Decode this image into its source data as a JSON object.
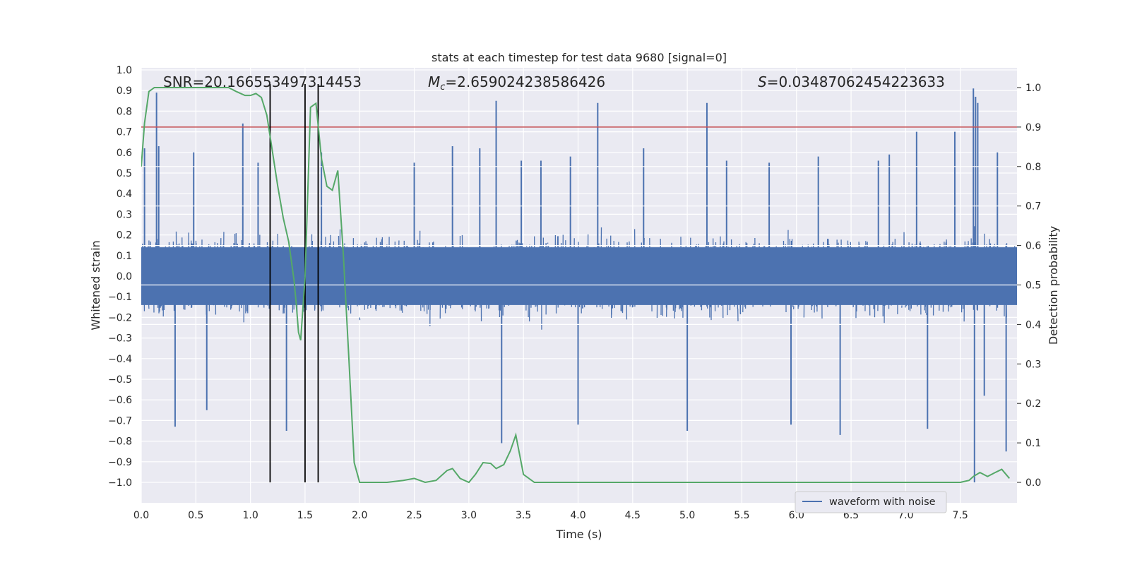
{
  "chart_data": {
    "type": "line",
    "title": "stats at each timestep for test data 9680 [signal=0]",
    "xlabel": "Time (s)",
    "ylabel": "Whitened strain",
    "y2label": "Detection probability",
    "xlim": [
      0,
      8
    ],
    "ylim": [
      -1.05,
      1.02
    ],
    "y2lim": [
      -0.05,
      1.05
    ],
    "xticks": [
      "0.0",
      "0.5",
      "1.0",
      "1.5",
      "2.0",
      "2.5",
      "3.0",
      "3.5",
      "4.0",
      "4.5",
      "5.0",
      "5.5",
      "6.0",
      "6.5",
      "7.0",
      "7.5"
    ],
    "yticks": [
      "1.0",
      "0.9",
      "0.8",
      "0.7",
      "0.6",
      "0.5",
      "0.4",
      "0.3",
      "0.2",
      "0.1",
      "0.0",
      "−0.1",
      "−0.2",
      "−0.3",
      "−0.4",
      "−0.5",
      "−0.6",
      "−0.7",
      "−0.8",
      "−0.9",
      "−1.0"
    ],
    "y2ticks": [
      "1.0",
      "0.9",
      "0.8",
      "0.7",
      "0.6",
      "0.5",
      "0.4",
      "0.3",
      "0.2",
      "0.1",
      "0.0"
    ],
    "annotations": {
      "snr": "SNR=20.166553497314453",
      "mc": "=2.659024238586426",
      "mc_symbol": "M",
      "mc_sub": "c",
      "s": "=0.03487062454223633",
      "s_symbol": "S"
    },
    "legend": {
      "label": "waveform with noise",
      "position": "lower-right"
    },
    "threshold": {
      "y2": 0.9,
      "color": "#c44e52"
    },
    "vertical_lines_x": [
      1.18,
      1.5,
      1.62
    ],
    "series": [
      {
        "name": "waveform with noise",
        "color": "#4c72b0",
        "axis": "left",
        "envelope": "noise band mostly within ±0.35, spikes to about ±0.9",
        "spikes": [
          [
            0.03,
            0.62
          ],
          [
            0.14,
            0.89
          ],
          [
            0.16,
            0.63
          ],
          [
            0.31,
            -0.73
          ],
          [
            0.48,
            0.6
          ],
          [
            0.6,
            -0.65
          ],
          [
            0.93,
            0.74
          ],
          [
            1.07,
            0.55
          ],
          [
            1.33,
            -0.75
          ],
          [
            1.65,
            0.6
          ],
          [
            2.5,
            0.55
          ],
          [
            2.85,
            0.63
          ],
          [
            3.1,
            0.62
          ],
          [
            3.25,
            0.85
          ],
          [
            3.3,
            -0.81
          ],
          [
            3.48,
            0.56
          ],
          [
            3.66,
            0.56
          ],
          [
            3.93,
            0.58
          ],
          [
            4.0,
            -0.72
          ],
          [
            4.18,
            0.84
          ],
          [
            4.6,
            0.62
          ],
          [
            5.0,
            -0.75
          ],
          [
            5.18,
            0.84
          ],
          [
            5.36,
            0.56
          ],
          [
            5.75,
            0.55
          ],
          [
            5.95,
            -0.72
          ],
          [
            6.2,
            0.58
          ],
          [
            6.4,
            -0.77
          ],
          [
            6.75,
            0.56
          ],
          [
            6.85,
            0.59
          ],
          [
            7.1,
            0.7
          ],
          [
            7.2,
            -0.74
          ],
          [
            7.45,
            0.7
          ],
          [
            7.62,
            0.91
          ],
          [
            7.64,
            0.87
          ],
          [
            7.66,
            0.84
          ],
          [
            7.63,
            -1.0
          ],
          [
            7.92,
            -0.85
          ],
          [
            7.84,
            0.6
          ],
          [
            7.72,
            -0.58
          ]
        ]
      },
      {
        "name": "",
        "color": "#55a868",
        "axis": "right",
        "x": [
          0.0,
          0.03,
          0.07,
          0.12,
          0.2,
          0.3,
          0.5,
          0.7,
          0.8,
          0.87,
          0.95,
          1.0,
          1.05,
          1.1,
          1.15,
          1.2,
          1.25,
          1.3,
          1.35,
          1.4,
          1.42,
          1.44,
          1.46,
          1.5,
          1.55,
          1.6,
          1.65,
          1.7,
          1.75,
          1.8,
          1.85,
          1.9,
          1.95,
          2.0,
          2.1,
          2.25,
          2.4,
          2.5,
          2.6,
          2.7,
          2.8,
          2.85,
          2.92,
          3.0,
          3.06,
          3.13,
          3.2,
          3.25,
          3.32,
          3.38,
          3.43,
          3.5,
          3.6,
          3.75,
          4.0,
          4.5,
          5.0,
          5.5,
          6.0,
          6.5,
          7.0,
          7.5,
          7.58,
          7.62,
          7.68,
          7.75,
          7.82,
          7.88,
          7.95
        ],
        "y": [
          0.8,
          0.91,
          0.99,
          1.0,
          1.0,
          1.0,
          1.0,
          1.0,
          1.0,
          0.99,
          0.98,
          0.98,
          0.985,
          0.975,
          0.93,
          0.84,
          0.75,
          0.67,
          0.61,
          0.51,
          0.45,
          0.38,
          0.36,
          0.52,
          0.95,
          0.96,
          0.82,
          0.75,
          0.74,
          0.79,
          0.58,
          0.32,
          0.05,
          0.0,
          0.0,
          0.0,
          0.005,
          0.01,
          0.0,
          0.005,
          0.03,
          0.035,
          0.01,
          0.0,
          0.02,
          0.05,
          0.048,
          0.035,
          0.045,
          0.08,
          0.12,
          0.02,
          0.0,
          0.0,
          0.0,
          0.0,
          0.0,
          0.0,
          0.0,
          0.0,
          0.0,
          0.0,
          0.005,
          0.015,
          0.025,
          0.015,
          0.025,
          0.033,
          0.01
        ]
      }
    ]
  }
}
